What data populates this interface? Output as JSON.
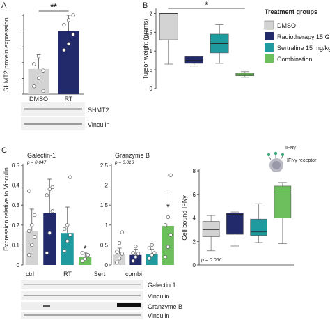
{
  "colors": {
    "dmso": "#d3d3d3",
    "rt": "#232a6b",
    "sert": "#1f9a9f",
    "combi": "#6cbf5c",
    "axis": "#333333",
    "blot_bg": "#f1f1f1",
    "blot_band": "#9a9a9a"
  },
  "panels": {
    "a": {
      "letter": "A"
    },
    "b": {
      "letter": "B"
    },
    "c": {
      "letter": "C"
    }
  },
  "blot_labels": {
    "a": [
      "SHMT2",
      "Vinculin"
    ],
    "c": [
      "Galectin 1",
      "Vinculin",
      "Granzyme B",
      "Vinculin"
    ]
  },
  "legend": {
    "title": "Treatment groups",
    "items": [
      "DMSO",
      "Radiotherapy 15 Gy",
      "Sertraline 15 mg/kg",
      "Combination"
    ]
  },
  "ifn_icon": {
    "label1": "IFNγ",
    "label2": "IFNγ receptor"
  },
  "chart_data": [
    {
      "id": "shmt2",
      "type": "bar",
      "title": "",
      "ylabel": "SHMT2 protein expression",
      "categories": [
        "DMSO",
        "RT"
      ],
      "values": [
        0.16,
        0.4
      ],
      "errors": [
        0.09,
        0.1
      ],
      "points": [
        [
          0.05,
          0.1,
          0.15,
          0.19,
          0.24,
          0.02
        ],
        [
          0.28,
          0.32,
          0.38,
          0.44,
          0.47,
          0.5
        ]
      ],
      "ylim": [
        0,
        0.5
      ],
      "yticks": [
        0,
        0.1,
        0.2,
        0.3,
        0.4,
        0.5
      ],
      "annotation": "**"
    },
    {
      "id": "tumor",
      "type": "box",
      "title": "",
      "ylabel": "Tumor weight (grams)",
      "categories": [
        "DMSO",
        "Radiotherapy 15 Gy",
        "Sertraline 15 mg/kg",
        "Combination"
      ],
      "boxes": [
        {
          "min": 0.65,
          "q1": 1.3,
          "median": 2.0,
          "q3": 2.0,
          "max": 2.0
        },
        {
          "min": 0.6,
          "q1": 0.67,
          "median": 0.75,
          "q3": 0.85,
          "max": 0.85
        },
        {
          "min": 0.67,
          "q1": 0.95,
          "median": 1.2,
          "q3": 1.45,
          "max": 1.7
        },
        {
          "min": 0.3,
          "q1": 0.34,
          "median": 0.37,
          "q3": 0.41,
          "max": 0.45
        }
      ],
      "ylim": [
        0,
        2.1
      ],
      "yticks": [
        "0",
        "0.5",
        "1",
        "1.5",
        "2"
      ],
      "annotation": "*"
    },
    {
      "id": "galectin",
      "type": "bar",
      "title": "Galectin-1",
      "subtitle": "p = 0.047",
      "ylabel": "Expression relative to Vinculin",
      "categories": [
        "ctrl",
        "RT",
        "Sert",
        "combi"
      ],
      "values": [
        0.17,
        0.26,
        0.16,
        0.04
      ],
      "errors": [
        0.11,
        0.17,
        0.13,
        0.02
      ],
      "points": [
        [
          0.05,
          0.1,
          0.14,
          0.17,
          0.2,
          0.25,
          0.37
        ],
        [
          0.06,
          0.16,
          0.27,
          0.35,
          0.38,
          0.39
        ],
        [
          0.07,
          0.12,
          0.15,
          0.18,
          0.2,
          0.44
        ],
        [
          0.02,
          0.03,
          0.05,
          0.06
        ]
      ],
      "ylim": [
        0,
        0.5
      ],
      "yticks": [
        "0",
        "0.1",
        "0.2",
        "0.3",
        "0.4",
        "0.5"
      ],
      "annotation": "*"
    },
    {
      "id": "granzyme",
      "type": "bar",
      "title": "Granzyme B",
      "subtitle": "p = 0.016",
      "ylabel": "",
      "categories": [
        "ctrl",
        "RT",
        "Sert",
        "combi"
      ],
      "values": [
        0.26,
        0.25,
        0.27,
        0.98
      ],
      "errors": [
        0.16,
        0.14,
        0.12,
        0.9
      ],
      "points": [
        [
          0.06,
          0.16,
          0.28,
          0.33,
          0.55,
          0.82
        ],
        [
          0.1,
          0.2,
          0.28,
          0.3,
          0.46
        ],
        [
          0.16,
          0.25,
          0.3,
          0.42,
          0.5
        ],
        [
          0.2,
          0.45,
          0.75,
          1.0,
          1.2,
          2.25
        ]
      ],
      "ylim": [
        0,
        2.5
      ],
      "yticks": [
        "0",
        "0.5",
        "1",
        "1.5",
        "2",
        "2.5"
      ],
      "annotation": "*"
    },
    {
      "id": "ifng",
      "type": "box",
      "title": "",
      "subtitle": "p = 0.066",
      "ylabel": "Cell bound IFNγ",
      "categories": [
        "DMSO",
        "RT",
        "Sert",
        "combi"
      ],
      "boxes": [
        {
          "min": 1.2,
          "q1": 2.4,
          "median": 3.0,
          "q3": 3.7,
          "max": 4.2
        },
        {
          "min": 1.6,
          "q1": 2.6,
          "median": 4.3,
          "q3": 4.4,
          "max": 4.5
        },
        {
          "min": 1.9,
          "q1": 2.5,
          "median": 2.8,
          "q3": 3.9,
          "max": 5.2
        },
        {
          "min": 1.8,
          "q1": 4.0,
          "median": 6.2,
          "q3": 6.7,
          "max": 7.0
        }
      ],
      "ylim": [
        0,
        8
      ],
      "yticks": [
        "0",
        "2",
        "4",
        "6",
        "8"
      ]
    }
  ]
}
